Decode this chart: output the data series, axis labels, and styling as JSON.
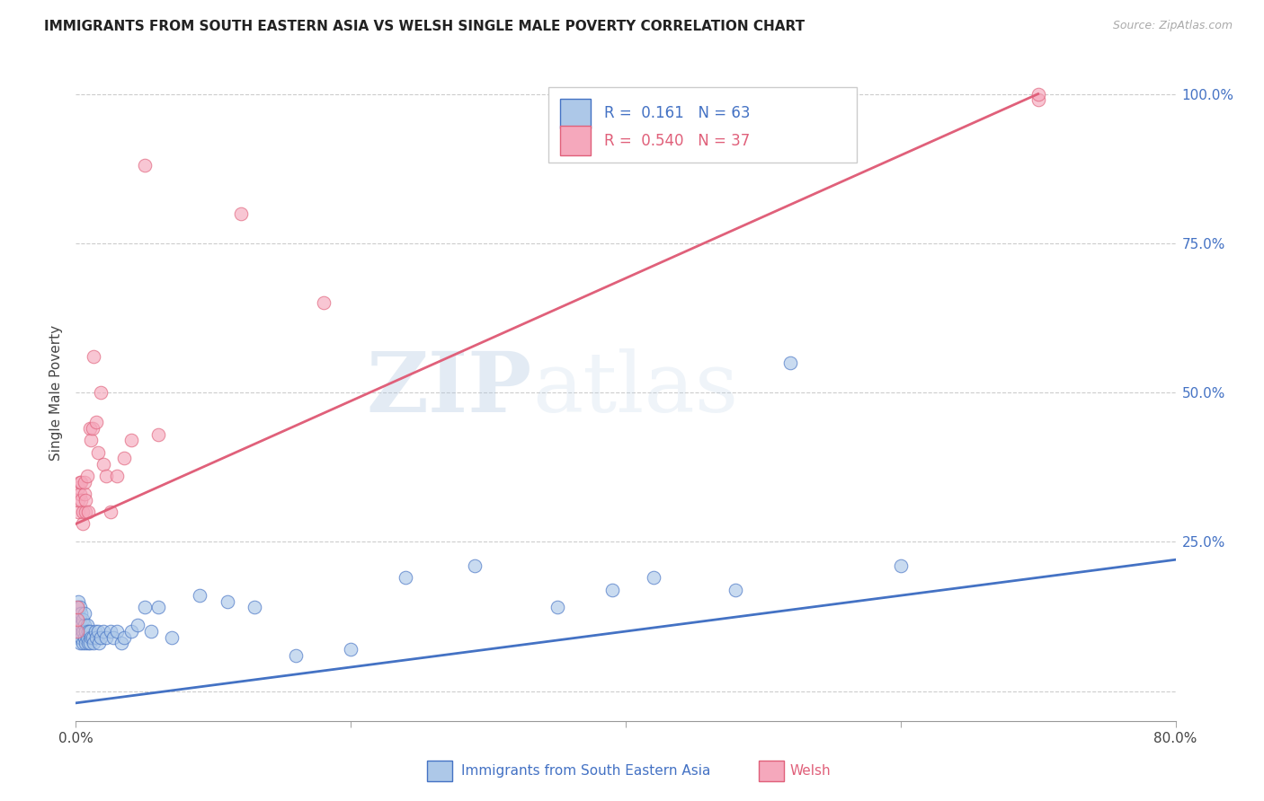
{
  "title": "IMMIGRANTS FROM SOUTH EASTERN ASIA VS WELSH SINGLE MALE POVERTY CORRELATION CHART",
  "source": "Source: ZipAtlas.com",
  "ylabel": "Single Male Poverty",
  "xlim": [
    0.0,
    0.8
  ],
  "ylim": [
    -0.05,
    1.05
  ],
  "y_ticks_right": [
    0.0,
    0.25,
    0.5,
    0.75,
    1.0
  ],
  "y_tick_labels_right": [
    "",
    "25.0%",
    "50.0%",
    "75.0%",
    "100.0%"
  ],
  "blue_R": 0.161,
  "blue_N": 63,
  "pink_R": 0.54,
  "pink_N": 37,
  "blue_color": "#adc8e8",
  "pink_color": "#f5a8bc",
  "blue_line_color": "#4472c4",
  "pink_line_color": "#e0607a",
  "watermark_zip": "ZIP",
  "watermark_atlas": "atlas",
  "blue_trend_x": [
    0.0,
    0.8
  ],
  "blue_trend_y": [
    -0.02,
    0.22
  ],
  "pink_trend_x": [
    0.0,
    0.7
  ],
  "pink_trend_y": [
    0.28,
    1.0
  ],
  "blue_scatter_x": [
    0.001,
    0.001,
    0.001,
    0.001,
    0.002,
    0.002,
    0.002,
    0.002,
    0.003,
    0.003,
    0.003,
    0.003,
    0.004,
    0.004,
    0.004,
    0.005,
    0.005,
    0.005,
    0.006,
    0.006,
    0.006,
    0.007,
    0.007,
    0.008,
    0.008,
    0.009,
    0.009,
    0.01,
    0.01,
    0.011,
    0.012,
    0.013,
    0.014,
    0.015,
    0.016,
    0.017,
    0.018,
    0.02,
    0.022,
    0.025,
    0.027,
    0.03,
    0.033,
    0.035,
    0.04,
    0.045,
    0.05,
    0.055,
    0.06,
    0.07,
    0.09,
    0.11,
    0.13,
    0.16,
    0.2,
    0.24,
    0.29,
    0.35,
    0.39,
    0.42,
    0.48,
    0.52,
    0.6
  ],
  "blue_scatter_y": [
    0.1,
    0.11,
    0.12,
    0.14,
    0.09,
    0.11,
    0.13,
    0.15,
    0.08,
    0.1,
    0.12,
    0.14,
    0.09,
    0.11,
    0.13,
    0.08,
    0.1,
    0.12,
    0.09,
    0.11,
    0.13,
    0.08,
    0.1,
    0.09,
    0.11,
    0.08,
    0.1,
    0.08,
    0.1,
    0.09,
    0.09,
    0.08,
    0.1,
    0.09,
    0.1,
    0.08,
    0.09,
    0.1,
    0.09,
    0.1,
    0.09,
    0.1,
    0.08,
    0.09,
    0.1,
    0.11,
    0.14,
    0.1,
    0.14,
    0.09,
    0.16,
    0.15,
    0.14,
    0.06,
    0.07,
    0.19,
    0.21,
    0.14,
    0.17,
    0.19,
    0.17,
    0.55,
    0.21
  ],
  "pink_scatter_x": [
    0.001,
    0.001,
    0.001,
    0.002,
    0.002,
    0.002,
    0.003,
    0.003,
    0.004,
    0.004,
    0.005,
    0.005,
    0.006,
    0.006,
    0.007,
    0.007,
    0.008,
    0.009,
    0.01,
    0.011,
    0.012,
    0.013,
    0.015,
    0.016,
    0.018,
    0.02,
    0.022,
    0.025,
    0.03,
    0.035,
    0.04,
    0.05,
    0.06,
    0.12,
    0.18,
    0.7,
    0.7
  ],
  "pink_scatter_y": [
    0.1,
    0.12,
    0.14,
    0.3,
    0.32,
    0.34,
    0.33,
    0.35,
    0.32,
    0.35,
    0.28,
    0.3,
    0.33,
    0.35,
    0.3,
    0.32,
    0.36,
    0.3,
    0.44,
    0.42,
    0.44,
    0.56,
    0.45,
    0.4,
    0.5,
    0.38,
    0.36,
    0.3,
    0.36,
    0.39,
    0.42,
    0.88,
    0.43,
    0.8,
    0.65,
    0.99,
    1.0
  ]
}
